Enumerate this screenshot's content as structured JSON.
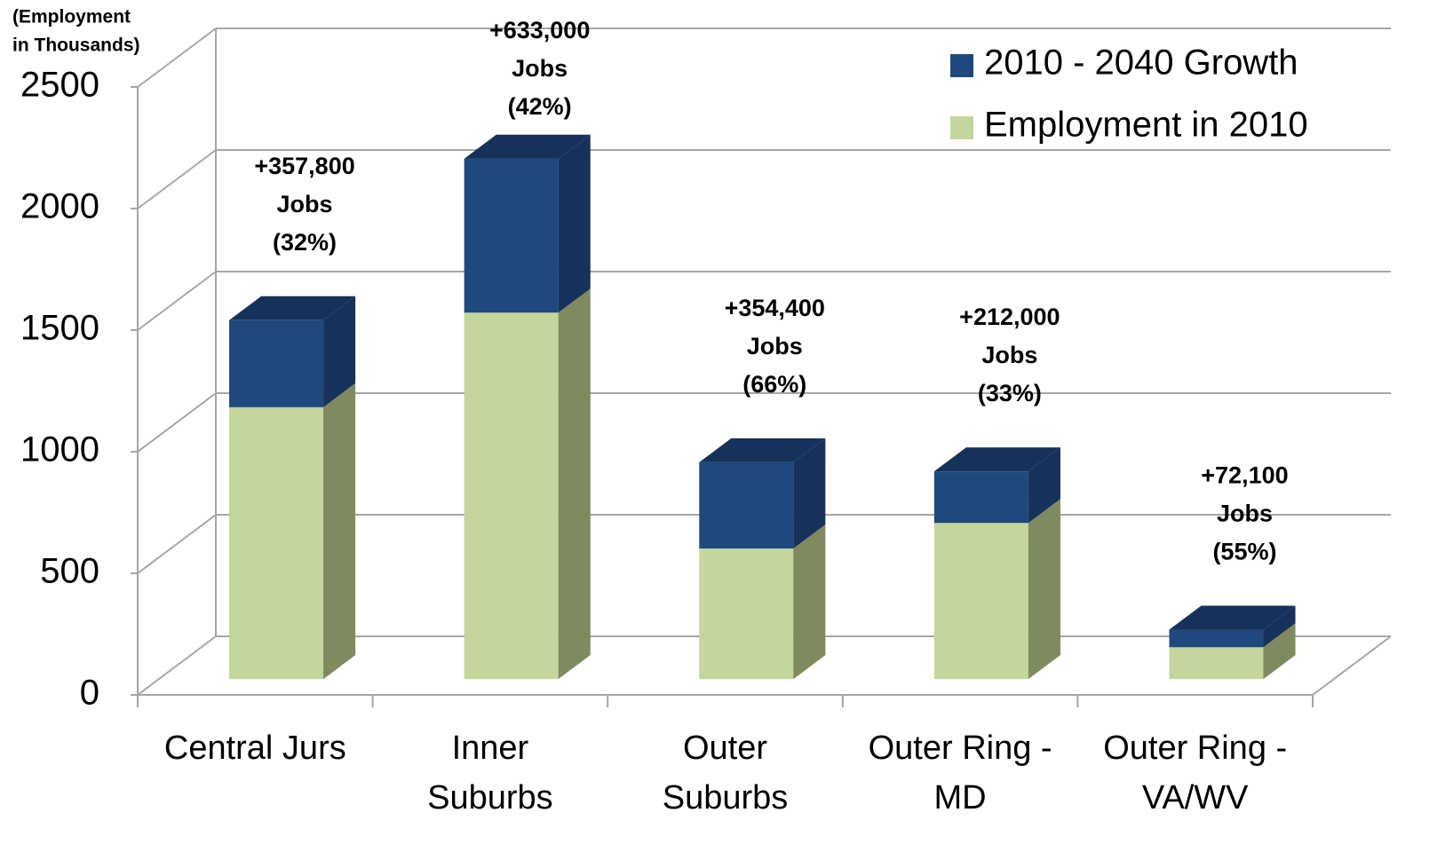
{
  "chart_data": {
    "type": "bar3d_stacked",
    "y_label": [
      "(Employment",
      "in Thousands)"
    ],
    "categories": [
      [
        "Central Jurs"
      ],
      [
        "Inner",
        "Suburbs"
      ],
      [
        "Outer",
        "Suburbs"
      ],
      [
        "Outer Ring -",
        "MD"
      ],
      [
        "Outer Ring -",
        "VA/WV"
      ]
    ],
    "series": [
      {
        "name": "Employment in 2010",
        "color": "#c3d69b",
        "side_color": "#7f8a5f",
        "values": [
          1118,
          1507,
          537,
          642,
          131
        ]
      },
      {
        "name": "2010 - 2040 Growth",
        "color": "#1f497d",
        "side_color": "#17325a",
        "values": [
          357.8,
          633,
          354.4,
          212,
          72.1
        ],
        "value_labels": [
          "+357,800",
          "+633,000",
          "+354,400",
          "+212,000",
          "+72,100"
        ],
        "percent_labels": [
          "(32%)",
          "(42%)",
          "(66%)",
          "(33%)",
          "(55%)"
        ]
      }
    ],
    "annotation_unit": "Jobs",
    "ylim": [
      0,
      2500
    ],
    "yticks": [
      0,
      500,
      1000,
      1500,
      2000,
      2500
    ],
    "grid": true,
    "legend": "top-right"
  }
}
